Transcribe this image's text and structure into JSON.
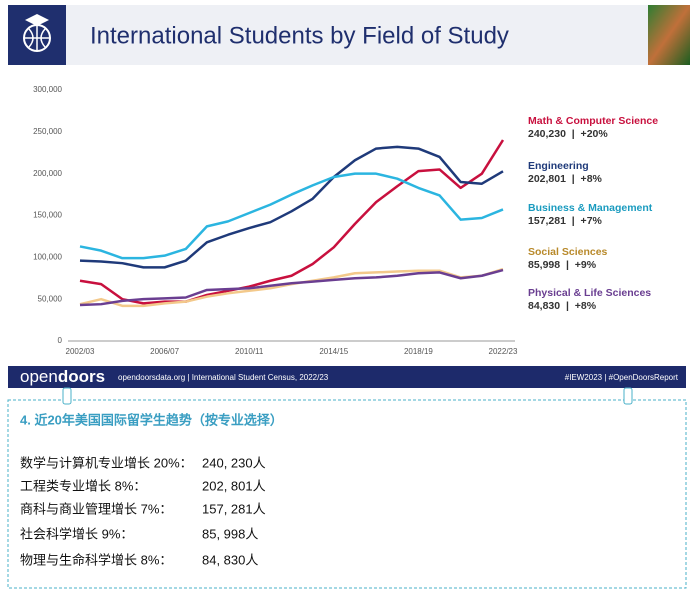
{
  "header": {
    "title": "International Students by Field of Study"
  },
  "chart_data": {
    "type": "line",
    "categories": [
      "2002/03",
      null,
      null,
      null,
      "2006/07",
      null,
      null,
      null,
      "2010/11",
      null,
      null,
      null,
      "2014/15",
      null,
      null,
      null,
      "2018/19",
      null,
      null,
      null,
      "2022/23"
    ],
    "ylim": [
      0,
      300000
    ],
    "yticks": [
      0,
      {
        "value": 50000,
        "label": "50,000"
      },
      {
        "value": 100000,
        "label": "100,000"
      },
      {
        "value": 150000,
        "label": "150,000"
      },
      {
        "value": 200000,
        "label": "200,000"
      },
      {
        "value": 250000,
        "label": "250,000"
      },
      {
        "value": 300000,
        "label": "300,000"
      }
    ],
    "grid": false,
    "series": [
      {
        "name": "Math & Computer Science",
        "summary": "240,230  |  +20%",
        "color": "#c8103e",
        "label_color": "#c8103e",
        "values": [
          72000,
          68000,
          50000,
          45000,
          47000,
          47000,
          55000,
          60000,
          65000,
          72000,
          78000,
          92000,
          112000,
          140000,
          166000,
          185000,
          203000,
          205000,
          183000,
          200000,
          240230
        ]
      },
      {
        "name": "Engineering",
        "summary": "202,801  |  +8%",
        "color": "#1f3a7a",
        "label_color": "#1f3a7a",
        "values": [
          96000,
          95000,
          93000,
          88000,
          88000,
          96000,
          118000,
          127000,
          135000,
          142000,
          155000,
          170000,
          196000,
          216000,
          230000,
          232000,
          230000,
          220000,
          190000,
          188000,
          202801
        ]
      },
      {
        "name": "Business & Management",
        "summary": "157,281  |  +7%",
        "color": "#2bb5e0",
        "label_color": "#1a9bbf",
        "values": [
          113000,
          108000,
          99000,
          99000,
          102000,
          110000,
          137000,
          143000,
          153000,
          163000,
          175000,
          186000,
          196000,
          200000,
          200000,
          194000,
          183000,
          174000,
          145000,
          147000,
          157281
        ]
      },
      {
        "name": "Social Sciences",
        "summary": "85,998  |  +9%",
        "color": "#f3c98b",
        "label_color": "#b8892a",
        "values": [
          44000,
          50000,
          42000,
          42000,
          45000,
          47000,
          53000,
          57000,
          60000,
          63000,
          68000,
          72000,
          76000,
          81000,
          82000,
          83000,
          84000,
          84000,
          76000,
          78000,
          85998
        ]
      },
      {
        "name": "Physical & Life Sciences",
        "summary": "84,830  |  +8%",
        "color": "#6a3e91",
        "label_color": "#6a3e91",
        "values": [
          43000,
          44000,
          48000,
          50000,
          51000,
          52000,
          61000,
          62000,
          63000,
          66000,
          69000,
          71000,
          73000,
          75000,
          76000,
          78000,
          81000,
          82000,
          75000,
          78000,
          84830
        ]
      }
    ]
  },
  "footer": {
    "logo_a": "open",
    "logo_b": "doors",
    "source": "opendoorsdata.org  |  International Student Census, 2022/23",
    "tags": "#IEW2023  |  #OpenDoorsReport"
  },
  "notes": {
    "heading": "4. 近20年美国国际留学生趋势（按专业选择）",
    "lines": [
      {
        "label": "数学与计算机专业增长 20%：",
        "value": "240, 230人"
      },
      {
        "label": "工程类专业增长 8%：",
        "value": "202, 801人"
      },
      {
        "label": "商科与商业管理增长 7%：",
        "value": "157, 281人"
      },
      {
        "label": "社会科学增长 9%：",
        "value": "85, 998人"
      },
      {
        "label": "物理与生命科学增长 8%：",
        "value": "84, 830人"
      }
    ]
  }
}
